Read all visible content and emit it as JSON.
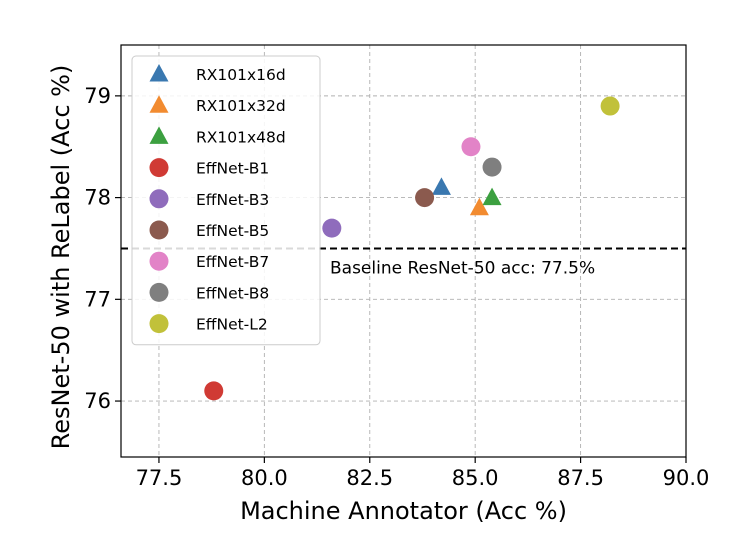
{
  "chart_data": {
    "type": "scatter",
    "title": "",
    "xlabel": "Machine Annotator (Acc %)",
    "ylabel": "ResNet-50 with ReLabel (Acc %)",
    "xlim": [
      76.6,
      90.0
    ],
    "ylim": [
      75.45,
      79.5
    ],
    "xticks": [
      77.5,
      80.0,
      82.5,
      85.0,
      87.5,
      90.0
    ],
    "xtick_labels": [
      "77.5",
      "80.0",
      "82.5",
      "85.0",
      "87.5",
      "90.0"
    ],
    "yticks": [
      76,
      77,
      78,
      79
    ],
    "ytick_labels": [
      "76",
      "77",
      "78",
      "79"
    ],
    "grid": true,
    "legend_position": "upper-left",
    "baseline": {
      "y": 77.5,
      "label": "Baseline ResNet-50 acc: 77.5%",
      "style": "dashed",
      "color": "#000000"
    },
    "series": [
      {
        "name": "RX101x16d",
        "marker": "triangle",
        "color": "#3a78b0",
        "x": 84.2,
        "y": 78.1
      },
      {
        "name": "RX101x32d",
        "marker": "triangle",
        "color": "#f28b30",
        "x": 85.1,
        "y": 77.9
      },
      {
        "name": "RX101x48d",
        "marker": "triangle",
        "color": "#3ca040",
        "x": 85.4,
        "y": 78.0
      },
      {
        "name": "EffNet-B1",
        "marker": "circle",
        "color": "#d03a34",
        "x": 78.8,
        "y": 76.1
      },
      {
        "name": "EffNet-B3",
        "marker": "circle",
        "color": "#8f6cbc",
        "x": 81.6,
        "y": 77.7
      },
      {
        "name": "EffNet-B5",
        "marker": "circle",
        "color": "#8b5a4e",
        "x": 83.8,
        "y": 78.0
      },
      {
        "name": "EffNet-B7",
        "marker": "circle",
        "color": "#e283c7",
        "x": 84.9,
        "y": 78.5
      },
      {
        "name": "EffNet-B8",
        "marker": "circle",
        "color": "#7f7f7f",
        "x": 85.4,
        "y": 78.3
      },
      {
        "name": "EffNet-L2",
        "marker": "circle",
        "color": "#c1c13a",
        "x": 88.2,
        "y": 78.9
      }
    ]
  }
}
